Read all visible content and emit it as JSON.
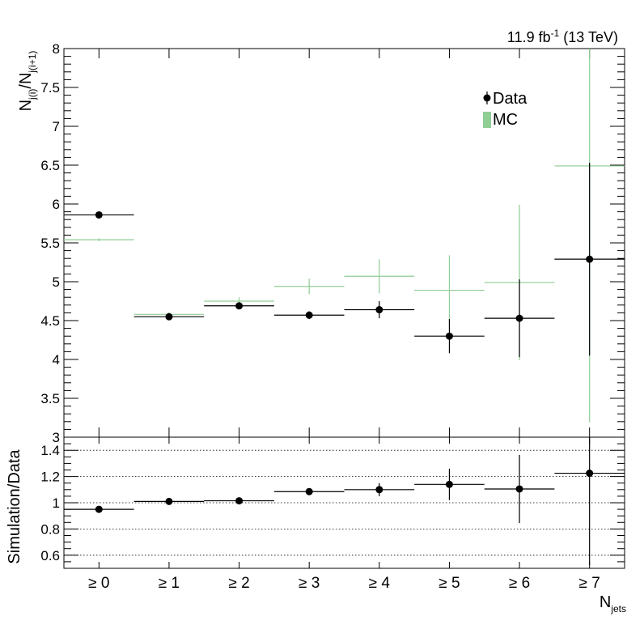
{
  "header": {
    "lumi_value": "11.9 fb",
    "lumi_exponent": "-1",
    "lumi_energy": " (13 TeV)"
  },
  "legend": {
    "data_label": "Data",
    "mc_label": "MC",
    "mc_color": "#8fce95",
    "data_color": "#000000"
  },
  "chart_data": [
    {
      "type": "scatter",
      "panel": "top",
      "ylabel_main": "N",
      "ylabel_sub1": "j(i)",
      "ylabel_mid": "/N",
      "ylabel_sub2": "j(i+1)",
      "ylim": [
        3,
        8
      ],
      "yticks": [
        "3",
        "3.5",
        "4",
        "4.5",
        "5",
        "5.5",
        "6",
        "6.5",
        "7",
        "7.5",
        "8"
      ],
      "categories": [
        "≥ 0",
        "≥ 1",
        "≥ 2",
        "≥ 3",
        "≥ 4",
        "≥ 5",
        "≥ 6",
        "≥ 7"
      ],
      "series": [
        {
          "name": "Data",
          "values": [
            5.86,
            4.55,
            4.69,
            4.57,
            4.64,
            4.3,
            4.53,
            5.29
          ],
          "errors": [
            0.02,
            0.03,
            0.04,
            0.05,
            0.11,
            0.22,
            0.5,
            1.24
          ]
        },
        {
          "name": "MC",
          "values": [
            5.54,
            4.58,
            4.75,
            4.94,
            5.07,
            4.89,
            4.99,
            6.49
          ],
          "errors": [
            0.02,
            0.03,
            0.05,
            0.1,
            0.22,
            0.45,
            1.0,
            3.3
          ]
        }
      ]
    },
    {
      "type": "scatter",
      "panel": "ratio",
      "ylabel": "Simulation/Data",
      "xlabel_main": "N",
      "xlabel_sub": "jets",
      "ylim": [
        0.5,
        1.5
      ],
      "yticks": [
        "0.6",
        "0.8",
        "1",
        "1.2",
        "1.4"
      ],
      "gridlines": [
        0.6,
        0.8,
        1.0,
        1.2,
        1.4
      ],
      "categories": [
        "≥ 0",
        "≥ 1",
        "≥ 2",
        "≥ 3",
        "≥ 4",
        "≥ 5",
        "≥ 6",
        "≥ 7"
      ],
      "values": [
        0.95,
        1.01,
        1.015,
        1.085,
        1.1,
        1.14,
        1.105,
        1.225
      ],
      "errors": [
        0.01,
        0.01,
        0.015,
        0.02,
        0.05,
        0.12,
        0.26,
        0.7
      ]
    }
  ]
}
